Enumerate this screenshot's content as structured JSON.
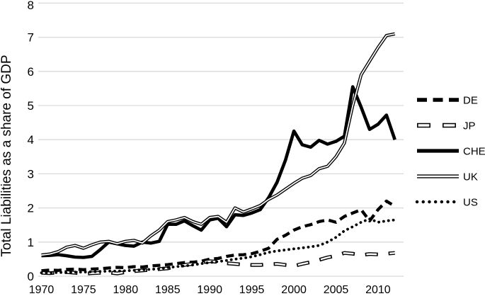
{
  "chart_data": {
    "type": "line",
    "title": "",
    "ylabel": "Total Liabilities as a share of GDP",
    "xlabel": "",
    "ylim": [
      0,
      8
    ],
    "yticks": [
      0,
      1,
      2,
      3,
      4,
      5,
      6,
      7,
      8
    ],
    "xticks": [
      1970,
      1975,
      1980,
      1985,
      1990,
      1995,
      2000,
      2005,
      2010
    ],
    "x_range": [
      1970,
      2012
    ],
    "grid": "horizontal-only",
    "legend_position": "right-outside",
    "colors": {
      "line": "#000000",
      "grid": "#d9d9d9",
      "background": "#ffffff"
    },
    "x": [
      1970,
      1971,
      1972,
      1973,
      1974,
      1975,
      1976,
      1977,
      1978,
      1979,
      1980,
      1981,
      1982,
      1983,
      1984,
      1985,
      1986,
      1987,
      1988,
      1989,
      1990,
      1991,
      1992,
      1993,
      1994,
      1995,
      1996,
      1997,
      1998,
      1999,
      2000,
      2001,
      2002,
      2003,
      2004,
      2005,
      2006,
      2007,
      2008,
      2009,
      2010,
      2011,
      2012
    ],
    "series": [
      {
        "name": "DE",
        "line_style": "thick-dashed",
        "values": [
          0.16,
          0.18,
          0.17,
          0.2,
          0.21,
          0.19,
          0.21,
          0.22,
          0.24,
          0.26,
          0.25,
          0.28,
          0.27,
          0.3,
          0.32,
          0.34,
          0.37,
          0.4,
          0.41,
          0.44,
          0.5,
          0.52,
          0.58,
          0.62,
          0.63,
          0.66,
          0.73,
          0.82,
          1.08,
          1.2,
          1.35,
          1.45,
          1.51,
          1.6,
          1.65,
          1.58,
          1.75,
          1.85,
          1.95,
          1.62,
          1.95,
          2.2,
          2.05
        ]
      },
      {
        "name": "JP",
        "line_style": "outlined-dashed",
        "values": [
          0.1,
          0.09,
          0.11,
          0.12,
          0.1,
          0.07,
          0.09,
          0.1,
          0.11,
          0.08,
          0.12,
          0.15,
          0.17,
          0.19,
          0.21,
          0.23,
          0.28,
          0.33,
          0.36,
          0.4,
          0.44,
          0.42,
          0.38,
          0.36,
          0.34,
          0.33,
          0.33,
          0.35,
          0.36,
          0.33,
          0.3,
          0.36,
          0.41,
          0.48,
          0.55,
          0.6,
          0.68,
          0.66,
          0.62,
          0.65,
          0.64,
          0.66,
          0.68
        ]
      },
      {
        "name": "CHE",
        "line_style": "thick-solid",
        "values": [
          0.6,
          0.61,
          0.63,
          0.6,
          0.56,
          0.55,
          0.58,
          0.78,
          1.0,
          0.95,
          0.9,
          0.88,
          1.0,
          0.97,
          1.02,
          1.52,
          1.52,
          1.62,
          1.48,
          1.35,
          1.65,
          1.7,
          1.45,
          1.8,
          1.78,
          1.85,
          1.95,
          2.3,
          2.75,
          3.4,
          4.25,
          3.85,
          3.78,
          3.98,
          3.87,
          3.95,
          4.1,
          5.55,
          4.95,
          4.3,
          4.45,
          4.72,
          4.0
        ]
      },
      {
        "name": "UK",
        "line_style": "outlined-solid",
        "values": [
          0.62,
          0.65,
          0.72,
          0.85,
          0.9,
          0.82,
          0.92,
          1.0,
          1.02,
          0.95,
          1.02,
          1.05,
          0.97,
          1.18,
          1.35,
          1.6,
          1.65,
          1.72,
          1.6,
          1.52,
          1.72,
          1.75,
          1.58,
          2.0,
          1.88,
          1.97,
          2.07,
          2.25,
          2.38,
          2.55,
          2.72,
          2.87,
          2.95,
          3.15,
          3.22,
          3.5,
          3.9,
          5.0,
          5.9,
          6.3,
          6.7,
          7.05,
          7.1
        ]
      },
      {
        "name": "US",
        "line_style": "dotted",
        "values": [
          0.1,
          0.1,
          0.11,
          0.11,
          0.12,
          0.12,
          0.13,
          0.14,
          0.15,
          0.15,
          0.16,
          0.17,
          0.19,
          0.2,
          0.22,
          0.25,
          0.28,
          0.3,
          0.33,
          0.37,
          0.4,
          0.43,
          0.46,
          0.5,
          0.53,
          0.57,
          0.63,
          0.7,
          0.74,
          0.77,
          0.8,
          0.83,
          0.86,
          0.9,
          1.0,
          1.14,
          1.33,
          1.45,
          1.58,
          1.68,
          1.58,
          1.62,
          1.65
        ]
      }
    ]
  }
}
